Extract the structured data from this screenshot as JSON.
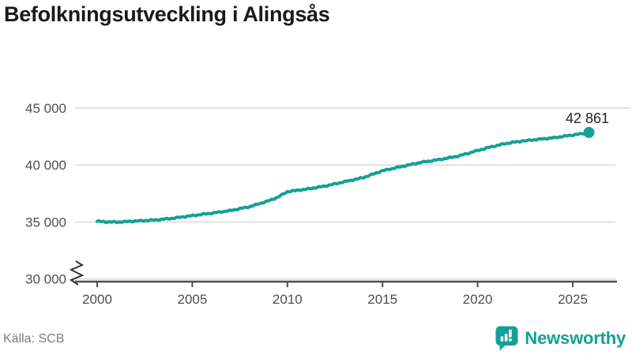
{
  "header": {
    "title": "Befolkningsutveckling i Alingsås"
  },
  "footer": {
    "source": "Källa: SCB"
  },
  "branding": {
    "wordmark": "Newsworthy",
    "color": "#14a096"
  },
  "chart_data": {
    "type": "line",
    "title": "Befolkningsutveckling i Alingsås",
    "xlabel": "",
    "ylabel": "",
    "source": "Källa: SCB",
    "line_color": "#14a096",
    "grid_color": "#e1e1e1",
    "axis_color": "#4d4d4d",
    "tick_label_color": "#4f4f4f",
    "end_label_color": "#262626",
    "y_axis": {
      "min": 30000,
      "max": 45000,
      "break_at_bottom": true
    },
    "y_ticks": [
      {
        "value": 45000,
        "label": "45 000"
      },
      {
        "value": 40000,
        "label": "40 000"
      },
      {
        "value": 35000,
        "label": "35 000"
      },
      {
        "value": 30000,
        "label": "30 000"
      }
    ],
    "x_ticks": [
      {
        "value": 2000,
        "label": "2000"
      },
      {
        "value": 2005,
        "label": "2005"
      },
      {
        "value": 2010,
        "label": "2010"
      },
      {
        "value": 2015,
        "label": "2015"
      },
      {
        "value": 2020,
        "label": "2020"
      },
      {
        "value": 2025,
        "label": "2025"
      }
    ],
    "end_annotation": {
      "label": "42 861",
      "year": 2025.85,
      "value": 42861
    },
    "series": [
      {
        "name": "Befolkning i Alingsås",
        "points": [
          [
            2000.0,
            35060
          ],
          [
            2000.5,
            35015
          ],
          [
            2001.0,
            34990
          ],
          [
            2001.5,
            35030
          ],
          [
            2002.0,
            35080
          ],
          [
            2003.0,
            35170
          ],
          [
            2004.0,
            35330
          ],
          [
            2005.0,
            35560
          ],
          [
            2006.0,
            35770
          ],
          [
            2007.0,
            36000
          ],
          [
            2008.0,
            36340
          ],
          [
            2009.0,
            36850
          ],
          [
            2009.5,
            37180
          ],
          [
            2010.0,
            37660
          ],
          [
            2010.6,
            37800
          ],
          [
            2011.0,
            37880
          ],
          [
            2012.0,
            38160
          ],
          [
            2013.0,
            38530
          ],
          [
            2014.0,
            38900
          ],
          [
            2015.0,
            39500
          ],
          [
            2016.0,
            39870
          ],
          [
            2017.0,
            40230
          ],
          [
            2018.0,
            40480
          ],
          [
            2019.0,
            40790
          ],
          [
            2020.0,
            41275
          ],
          [
            2020.6,
            41550
          ],
          [
            2021.5,
            41900
          ],
          [
            2022.3,
            42100
          ],
          [
            2023.1,
            42240
          ],
          [
            2024.0,
            42390
          ],
          [
            2024.8,
            42590
          ],
          [
            2025.5,
            42750
          ],
          [
            2025.85,
            42861
          ]
        ]
      }
    ]
  }
}
